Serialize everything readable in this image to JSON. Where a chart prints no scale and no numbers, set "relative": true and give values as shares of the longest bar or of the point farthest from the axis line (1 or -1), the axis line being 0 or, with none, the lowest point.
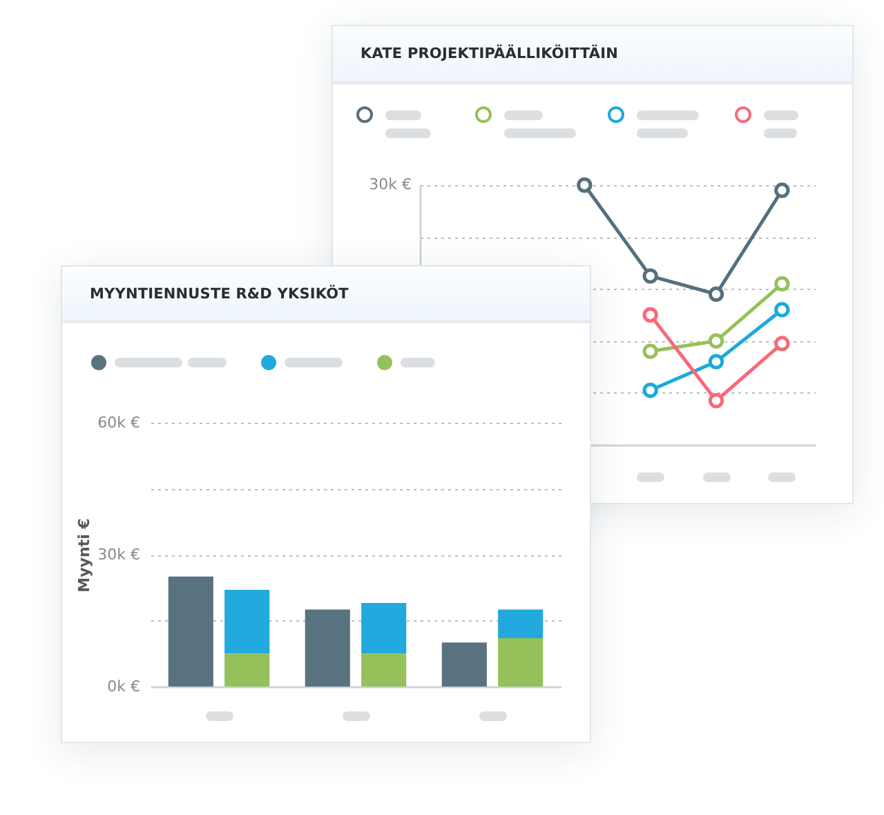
{
  "chart_data": [
    {
      "type": "line",
      "title": "KATE PROJEKTIPÄÄLLIKÖITTÄIN",
      "categories": [
        null,
        null,
        null,
        null,
        null,
        null
      ],
      "relative": true,
      "series": [
        {
          "color": "#566f7c",
          "values": [
            null,
            null,
            1,
            0.65,
            0.58,
            0.98
          ]
        },
        {
          "color": "#95c158",
          "values": [
            null,
            null,
            null,
            0.36,
            0.4,
            0.62
          ]
        },
        {
          "color": "#1ba9dd",
          "values": [
            null,
            null,
            null,
            0.21,
            0.32,
            0.52
          ]
        },
        {
          "color": "#f96878",
          "values": [
            null,
            null,
            null,
            0.5,
            0.17,
            0.39
          ]
        }
      ],
      "annotations": [
        "30k €"
      ],
      "marker": "circle",
      "grid": "y"
    },
    {
      "type": "bar",
      "title": "MYYNTIENNUSTE R&D YKSIKÖT",
      "ylabel": "Myynti €",
      "categories": [
        null,
        null,
        null
      ],
      "series": [
        {
          "color": "#587280",
          "values": [
            25000,
            17500,
            10000
          ]
        },
        {
          "color": "#22a9dd",
          "values": [
            14500,
            11500,
            6500
          ],
          "base": [
            7500,
            7500,
            11000
          ]
        },
        {
          "color": "#95c15a",
          "values": [
            7500,
            7500,
            11000
          ],
          "base": [
            0,
            0,
            0
          ]
        }
      ],
      "ylim": [
        0,
        60000
      ],
      "yticks": [
        {
          "value": 0,
          "label": "0k €"
        },
        {
          "value": 15000,
          "label": null
        },
        {
          "value": 30000,
          "label": "30k €"
        },
        {
          "value": 45000,
          "label": null
        },
        {
          "value": 60000,
          "label": "60k €"
        }
      ],
      "grid": "y"
    }
  ]
}
